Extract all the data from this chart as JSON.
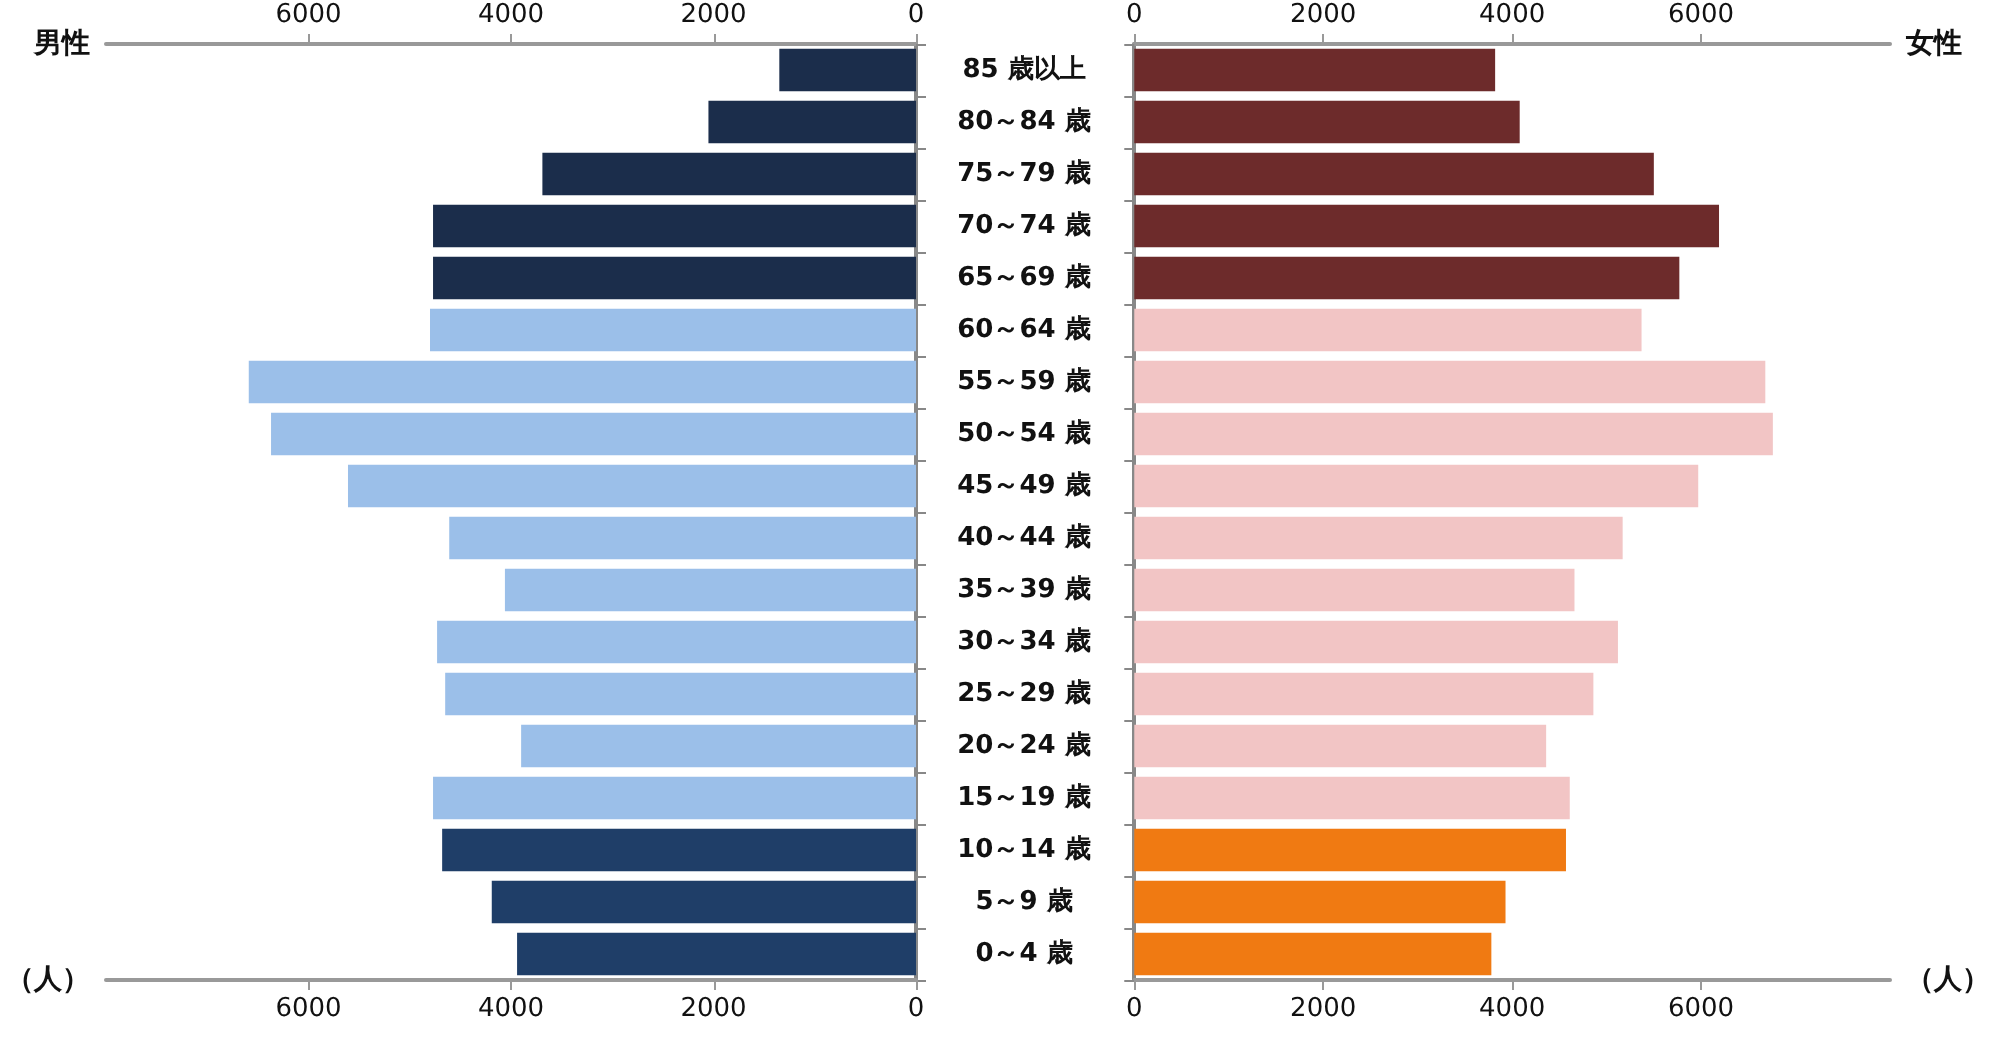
{
  "chart_data": [
    {
      "type": "bar",
      "orientation": "horizontal",
      "x2label": "男性",
      "xlabel": "（人）",
      "categories": [
        "85 歳以上",
        "80～84 歳",
        "75～79 歳",
        "70～74 歳",
        "65～69 歳",
        "60～64 歳",
        "55～59 歳",
        "50～54 歳",
        "45～49 歳",
        "40～44 歳",
        "35～39 歳",
        "30～34 歳",
        "25～29 歳",
        "20～24 歳",
        "15～19 歳",
        "10～14 歳",
        "5～9 歳",
        "0～4 歳"
      ],
      "values": [
        1350,
        2050,
        3690,
        4770,
        4770,
        4800,
        6590,
        6370,
        5610,
        4610,
        4060,
        4730,
        4650,
        3900,
        4770,
        4680,
        4190,
        3940
      ],
      "colors": [
        "#1b2d4b",
        "#1b2d4b",
        "#1b2d4b",
        "#1b2d4b",
        "#1b2d4b",
        "#9bbfe9",
        "#9bbfe9",
        "#9bbfe9",
        "#9bbfe9",
        "#9bbfe9",
        "#9bbfe9",
        "#9bbfe9",
        "#9bbfe9",
        "#9bbfe9",
        "#9bbfe9",
        "#1f3e68",
        "#1f3e68",
        "#1f3e68"
      ],
      "xlim": [
        8000,
        0
      ],
      "xticks": [
        0,
        2000,
        4000,
        6000
      ],
      "x2lim": [
        8000,
        0
      ],
      "x2ticks": [
        0,
        2000,
        4000,
        6000
      ],
      "grid": false
    },
    {
      "type": "bar",
      "orientation": "horizontal",
      "x2label": "女性",
      "xlabel": "（人）",
      "tick_labels": "x",
      "categories": [
        null,
        null,
        null,
        null,
        null,
        null,
        null,
        null,
        null,
        null,
        null,
        null,
        null,
        null,
        null,
        null,
        null,
        null
      ],
      "values": [
        3820,
        4080,
        5500,
        6190,
        5770,
        5370,
        6680,
        6760,
        5970,
        5170,
        4660,
        5120,
        4860,
        4360,
        4610,
        4570,
        3930,
        3780
      ],
      "colors": [
        "#6d2b2b",
        "#6d2b2b",
        "#6d2b2b",
        "#6d2b2b",
        "#6d2b2b",
        "#f2c5c5",
        "#f2c5c5",
        "#f2c5c5",
        "#f2c5c5",
        "#f2c5c5",
        "#f2c5c5",
        "#f2c5c5",
        "#f2c5c5",
        "#f2c5c5",
        "#f2c5c5",
        "#f07a12",
        "#f07a12",
        "#f07a12"
      ],
      "xlim": [
        0,
        8000
      ],
      "xticks": [
        0,
        2000,
        4000,
        6000
      ],
      "x2lim": [
        0,
        8000
      ],
      "x2ticks": [
        0,
        2000,
        4000,
        6000
      ],
      "grid": false
    }
  ]
}
